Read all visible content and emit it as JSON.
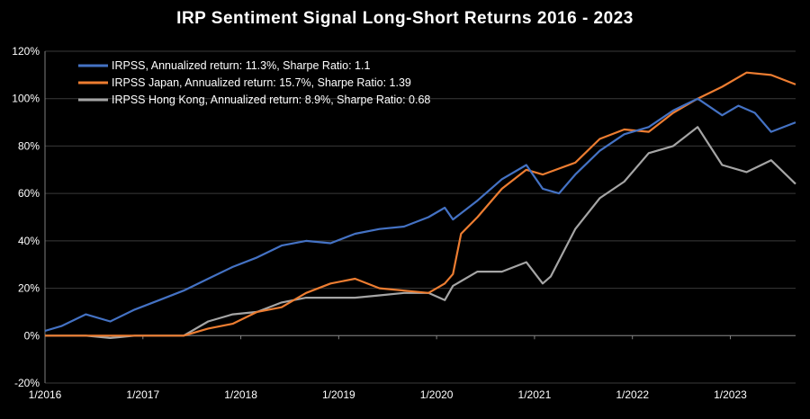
{
  "chart_data": {
    "type": "line",
    "title": "IRP Sentiment Signal Long-Short Returns 2016 - 2023",
    "xlabel": "",
    "ylabel": "",
    "ylim": [
      -0.2,
      1.2
    ],
    "xlim": [
      "2016-01",
      "2023-09"
    ],
    "y_ticks": [
      {
        "value": -0.2,
        "label": "-20%"
      },
      {
        "value": 0.0,
        "label": "0%"
      },
      {
        "value": 0.2,
        "label": "20%"
      },
      {
        "value": 0.4,
        "label": "40%"
      },
      {
        "value": 0.6,
        "label": "60%"
      },
      {
        "value": 0.8,
        "label": "80%"
      },
      {
        "value": 1.0,
        "label": "100%"
      },
      {
        "value": 1.2,
        "label": "120%"
      }
    ],
    "x_ticks": [
      "1/2016",
      "1/2017",
      "1/2018",
      "1/2019",
      "1/2020",
      "1/2021",
      "1/2022",
      "1/2023"
    ],
    "grid": "horizontal",
    "legend_position": "top-left",
    "series": [
      {
        "name": "IRPSS, Annualized return: 11.3%, Sharpe Ratio: 1.1",
        "color": "#4472C4",
        "x": [
          "2016-01",
          "2016-03",
          "2016-06",
          "2016-09",
          "2016-12",
          "2017-03",
          "2017-06",
          "2017-09",
          "2017-12",
          "2018-03",
          "2018-06",
          "2018-09",
          "2018-12",
          "2019-03",
          "2019-06",
          "2019-09",
          "2019-12",
          "2020-02",
          "2020-03",
          "2020-06",
          "2020-09",
          "2020-12",
          "2021-02",
          "2021-04",
          "2021-06",
          "2021-09",
          "2021-12",
          "2022-03",
          "2022-06",
          "2022-09",
          "2022-12",
          "2023-02",
          "2023-04",
          "2023-06",
          "2023-09"
        ],
        "values": [
          0.02,
          0.04,
          0.09,
          0.06,
          0.11,
          0.15,
          0.19,
          0.24,
          0.29,
          0.33,
          0.38,
          0.4,
          0.39,
          0.43,
          0.45,
          0.46,
          0.5,
          0.54,
          0.49,
          0.57,
          0.66,
          0.72,
          0.62,
          0.6,
          0.68,
          0.78,
          0.85,
          0.88,
          0.95,
          1.0,
          0.93,
          0.97,
          0.94,
          0.86,
          0.9
        ]
      },
      {
        "name": "IRPSS Japan, Annualized return: 15.7%, Sharpe Ratio: 1.39",
        "color": "#ED7D31",
        "x": [
          "2016-01",
          "2016-06",
          "2016-12",
          "2017-03",
          "2017-06",
          "2017-09",
          "2017-12",
          "2018-03",
          "2018-06",
          "2018-09",
          "2018-12",
          "2019-03",
          "2019-06",
          "2019-09",
          "2019-12",
          "2020-02",
          "2020-03",
          "2020-04",
          "2020-06",
          "2020-09",
          "2020-12",
          "2021-02",
          "2021-06",
          "2021-09",
          "2021-12",
          "2022-03",
          "2022-06",
          "2022-09",
          "2022-12",
          "2023-03",
          "2023-06",
          "2023-09"
        ],
        "values": [
          0.0,
          0.0,
          0.0,
          0.0,
          0.0,
          0.03,
          0.05,
          0.1,
          0.12,
          0.18,
          0.22,
          0.24,
          0.2,
          0.19,
          0.18,
          0.22,
          0.26,
          0.43,
          0.5,
          0.62,
          0.7,
          0.68,
          0.73,
          0.83,
          0.87,
          0.86,
          0.94,
          1.0,
          1.05,
          1.11,
          1.1,
          1.06
        ]
      },
      {
        "name": "IRPSS Hong Kong, Annualized return: 8.9%, Sharpe Ratio: 0.68",
        "color": "#A5A5A5",
        "x": [
          "2016-01",
          "2016-06",
          "2016-09",
          "2016-12",
          "2017-03",
          "2017-06",
          "2017-09",
          "2017-12",
          "2018-03",
          "2018-06",
          "2018-09",
          "2018-12",
          "2019-03",
          "2019-06",
          "2019-09",
          "2019-12",
          "2020-02",
          "2020-03",
          "2020-06",
          "2020-09",
          "2020-12",
          "2021-02",
          "2021-03",
          "2021-06",
          "2021-09",
          "2021-12",
          "2022-03",
          "2022-06",
          "2022-09",
          "2022-12",
          "2023-03",
          "2023-06",
          "2023-09"
        ],
        "values": [
          0.0,
          0.0,
          -0.01,
          0.0,
          0.0,
          0.0,
          0.06,
          0.09,
          0.1,
          0.14,
          0.16,
          0.16,
          0.16,
          0.17,
          0.18,
          0.18,
          0.15,
          0.21,
          0.27,
          0.27,
          0.31,
          0.22,
          0.25,
          0.45,
          0.58,
          0.65,
          0.77,
          0.8,
          0.88,
          0.72,
          0.69,
          0.74,
          0.64
        ]
      }
    ]
  }
}
